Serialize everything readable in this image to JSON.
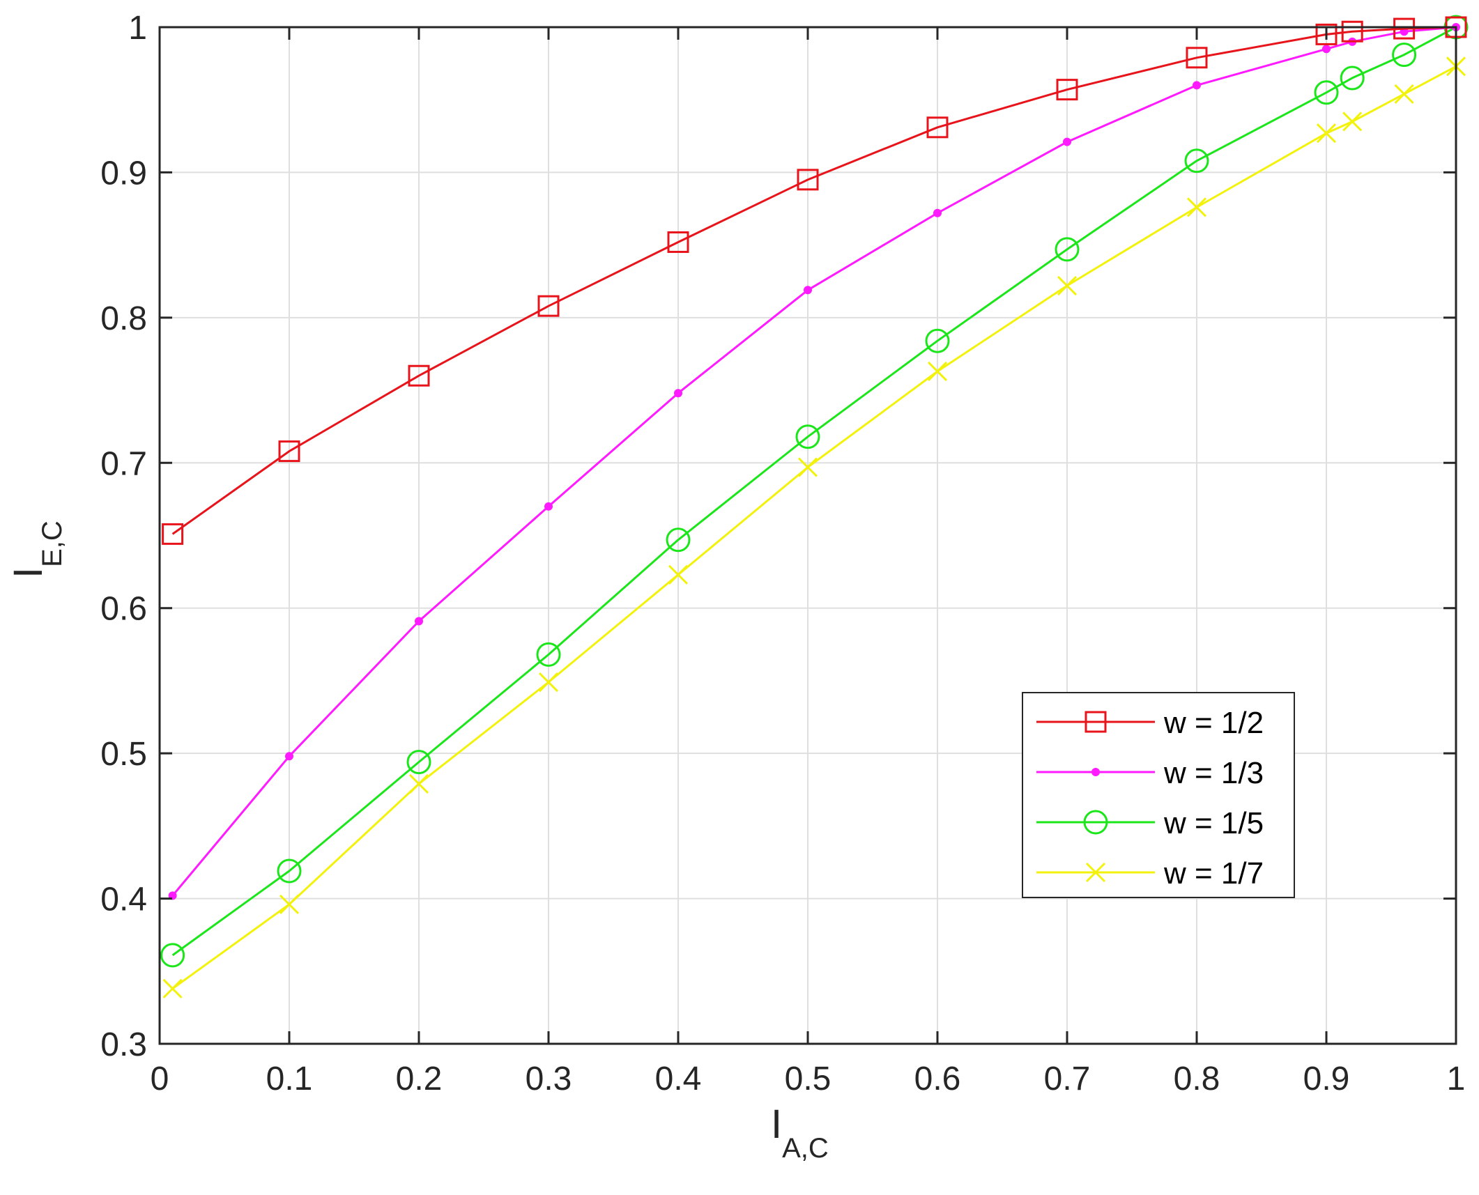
{
  "chart_data": {
    "type": "line",
    "xlabel": {
      "main": "I",
      "sub": "A,C"
    },
    "ylabel": {
      "main": "I",
      "sub": "E,C"
    },
    "xlim": [
      0,
      1
    ],
    "ylim": [
      0.3,
      1
    ],
    "xticks": [
      0,
      0.1,
      0.2,
      0.3,
      0.4,
      0.5,
      0.6,
      0.7,
      0.8,
      0.9,
      1
    ],
    "xtick_labels": [
      "0",
      "0.1",
      "0.2",
      "0.3",
      "0.4",
      "0.5",
      "0.6",
      "0.7",
      "0.8",
      "0.9",
      "1"
    ],
    "yticks": [
      0.3,
      0.4,
      0.5,
      0.6,
      0.7,
      0.8,
      0.9,
      1
    ],
    "ytick_labels": [
      "0.3",
      "0.4",
      "0.5",
      "0.6",
      "0.7",
      "0.8",
      "0.9",
      "1"
    ],
    "grid": true,
    "legend_position": "lower-right",
    "x": [
      0.01,
      0.1,
      0.2,
      0.3,
      0.4,
      0.5,
      0.6,
      0.7,
      0.8,
      0.9,
      0.92,
      0.96,
      1
    ],
    "series": [
      {
        "name": "w = 1/2",
        "color": "#e8141b",
        "marker": "square",
        "values": [
          0.651,
          0.708,
          0.76,
          0.808,
          0.852,
          0.895,
          0.931,
          0.957,
          0.979,
          0.995,
          0.997,
          0.999,
          1.0
        ]
      },
      {
        "name": "w = 1/3",
        "color": "#ff1aff",
        "marker": "dot",
        "values": [
          0.402,
          0.498,
          0.591,
          0.67,
          0.748,
          0.819,
          0.872,
          0.921,
          0.96,
          0.985,
          0.99,
          0.997,
          1.0
        ]
      },
      {
        "name": "w = 1/5",
        "color": "#1ae61a",
        "marker": "circle",
        "values": [
          0.361,
          0.419,
          0.494,
          0.568,
          0.647,
          0.718,
          0.784,
          0.847,
          0.908,
          0.955,
          0.965,
          0.981,
          1.0
        ]
      },
      {
        "name": "w = 1/7",
        "color": "#f2f20d",
        "marker": "x",
        "values": [
          0.338,
          0.396,
          0.479,
          0.549,
          0.623,
          0.697,
          0.763,
          0.822,
          0.876,
          0.927,
          0.935,
          0.954,
          0.973
        ]
      }
    ]
  }
}
